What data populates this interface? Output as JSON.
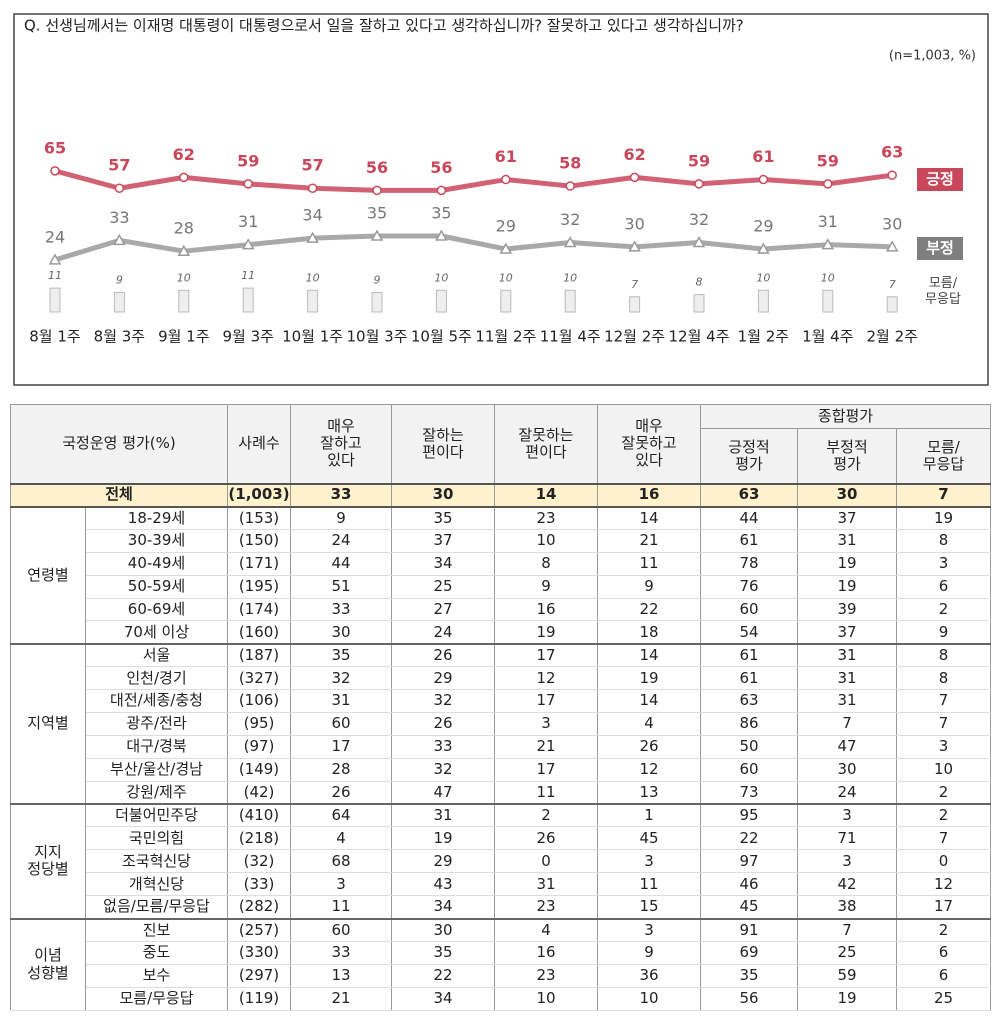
{
  "chart_data": {
    "type": "line",
    "title": "Q. 선생님께서는 이재명 대통령이 대통령으로서 일을 잘하고 있다고 생각하십니까? 잘못하고 있다고 생각하십니까?",
    "subtitle": "(n=1,003, %)",
    "categories": [
      "8월 1주",
      "8월 3주",
      "9월 1주",
      "9월 3주",
      "10월 1주",
      "10월 3주",
      "10월 5주",
      "11월 2주",
      "11월 4주",
      "12월 2주",
      "12월 4주",
      "1월 2주",
      "1월 4주",
      "2월 2주"
    ],
    "ylim": [
      0,
      70
    ],
    "series": [
      {
        "name": "긍정",
        "color": "#c8475a",
        "type": "line",
        "values": [
          65,
          57,
          62,
          59,
          57,
          56,
          56,
          61,
          58,
          62,
          59,
          61,
          59,
          63
        ]
      },
      {
        "name": "부정",
        "color": "#9a9a9a",
        "type": "line",
        "values": [
          24,
          33,
          28,
          31,
          34,
          35,
          35,
          29,
          32,
          30,
          32,
          29,
          31,
          30
        ]
      },
      {
        "name": "모름/\n무응답",
        "color": "#eeeeee",
        "type": "bar",
        "values": [
          11,
          9,
          10,
          11,
          10,
          9,
          10,
          10,
          10,
          7,
          8,
          10,
          10,
          7
        ]
      }
    ]
  },
  "table": {
    "header_top": [
      "국정운영 평가(%)",
      "사례수",
      "매우\n잘하고\n있다",
      "잘하는\n편이다",
      "잘못하는\n편이다",
      "매우\n잘못하고\n있다",
      "종합평가"
    ],
    "header_sub": [
      "긍정적\n평가",
      "부정적\n평가",
      "모름/\n무응답"
    ],
    "total": {
      "label": "전체",
      "n": "(1,003)",
      "values": [
        33,
        30,
        14,
        16,
        63,
        30,
        7
      ]
    },
    "groups": [
      {
        "label": "연령별",
        "rows": [
          {
            "label": "18-29세",
            "n": "(153)",
            "values": [
              9,
              35,
              23,
              14,
              44,
              37,
              19
            ]
          },
          {
            "label": "30-39세",
            "n": "(150)",
            "values": [
              24,
              37,
              10,
              21,
              61,
              31,
              8
            ]
          },
          {
            "label": "40-49세",
            "n": "(171)",
            "values": [
              44,
              34,
              8,
              11,
              78,
              19,
              3
            ]
          },
          {
            "label": "50-59세",
            "n": "(195)",
            "values": [
              51,
              25,
              9,
              9,
              76,
              19,
              6
            ]
          },
          {
            "label": "60-69세",
            "n": "(174)",
            "values": [
              33,
              27,
              16,
              22,
              60,
              39,
              2
            ]
          },
          {
            "label": "70세 이상",
            "n": "(160)",
            "values": [
              30,
              24,
              19,
              18,
              54,
              37,
              9
            ]
          }
        ]
      },
      {
        "label": "지역별",
        "rows": [
          {
            "label": "서울",
            "n": "(187)",
            "values": [
              35,
              26,
              17,
              14,
              61,
              31,
              8
            ]
          },
          {
            "label": "인천/경기",
            "n": "(327)",
            "values": [
              32,
              29,
              12,
              19,
              61,
              31,
              8
            ]
          },
          {
            "label": "대전/세종/충청",
            "n": "(106)",
            "values": [
              31,
              32,
              17,
              14,
              63,
              31,
              7
            ]
          },
          {
            "label": "광주/전라",
            "n": "(95)",
            "values": [
              60,
              26,
              3,
              4,
              86,
              7,
              7
            ]
          },
          {
            "label": "대구/경북",
            "n": "(97)",
            "values": [
              17,
              33,
              21,
              26,
              50,
              47,
              3
            ]
          },
          {
            "label": "부산/울산/경남",
            "n": "(149)",
            "values": [
              28,
              32,
              17,
              12,
              60,
              30,
              10
            ]
          },
          {
            "label": "강원/제주",
            "n": "(42)",
            "values": [
              26,
              47,
              11,
              13,
              73,
              24,
              2
            ]
          }
        ]
      },
      {
        "label": "지지\n정당별",
        "rows": [
          {
            "label": "더불어민주당",
            "n": "(410)",
            "values": [
              64,
              31,
              2,
              1,
              95,
              3,
              2
            ]
          },
          {
            "label": "국민의힘",
            "n": "(218)",
            "values": [
              4,
              19,
              26,
              45,
              22,
              71,
              7
            ]
          },
          {
            "label": "조국혁신당",
            "n": "(32)",
            "values": [
              68,
              29,
              0,
              3,
              97,
              3,
              0
            ]
          },
          {
            "label": "개혁신당",
            "n": "(33)",
            "values": [
              3,
              43,
              31,
              11,
              46,
              42,
              12
            ]
          },
          {
            "label": "없음/모름/무응답",
            "n": "(282)",
            "values": [
              11,
              34,
              23,
              15,
              45,
              38,
              17
            ]
          }
        ]
      },
      {
        "label": "이념\n성향별",
        "rows": [
          {
            "label": "진보",
            "n": "(257)",
            "values": [
              60,
              30,
              4,
              3,
              91,
              7,
              2
            ]
          },
          {
            "label": "중도",
            "n": "(330)",
            "values": [
              33,
              35,
              16,
              9,
              69,
              25,
              6
            ]
          },
          {
            "label": "보수",
            "n": "(297)",
            "values": [
              13,
              22,
              23,
              36,
              35,
              59,
              6
            ]
          },
          {
            "label": "모름/무응답",
            "n": "(119)",
            "values": [
              21,
              34,
              10,
              10,
              56,
              19,
              25
            ]
          }
        ]
      }
    ]
  }
}
